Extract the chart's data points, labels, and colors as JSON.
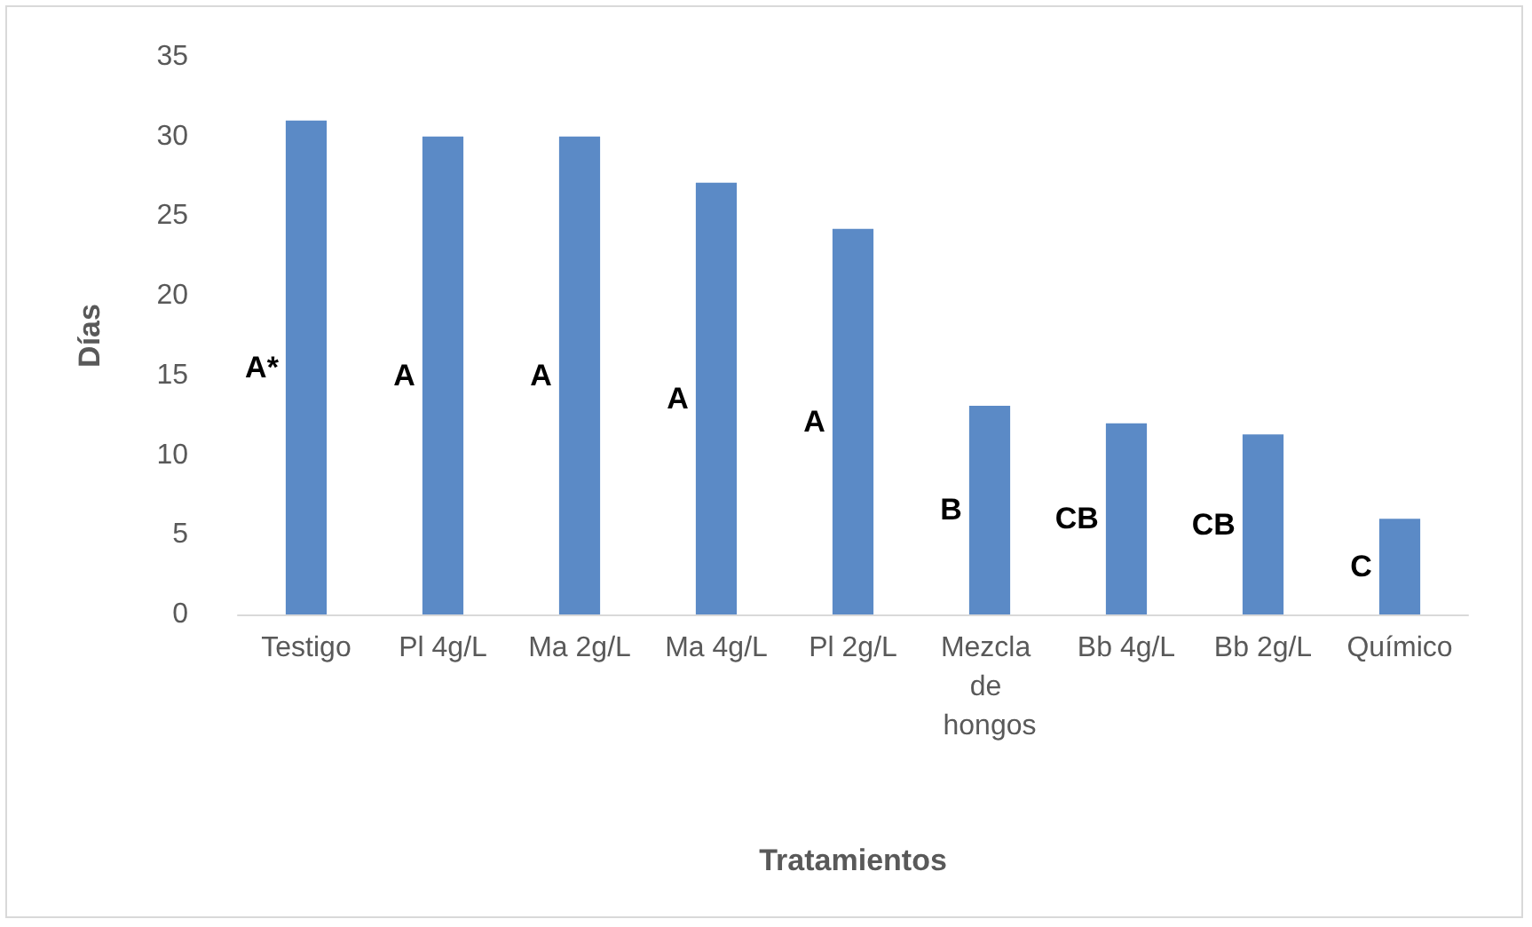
{
  "chart_data": {
    "type": "bar",
    "xlabel": "Tratamientos",
    "ylabel": "Días",
    "categories": [
      "Testigo",
      "Pl 4g/L",
      "Ma 2g/L",
      "Ma 4g/L",
      "Pl 2g/L",
      "Mezcla de hongos",
      "Bb 4g/L",
      "Bb 2g/L",
      "Químico"
    ],
    "values": [
      31,
      30,
      30,
      27.1,
      24.2,
      13.1,
      12,
      11.3,
      6
    ],
    "color": "#5b8ac6",
    "ylim": [
      0,
      35
    ],
    "yticks": [
      0,
      5,
      10,
      15,
      20,
      25,
      30,
      35
    ],
    "grid": false,
    "annotations": [
      "A*",
      "A",
      "A",
      "A",
      "A",
      "B",
      "CB",
      "CB",
      "C"
    ]
  }
}
